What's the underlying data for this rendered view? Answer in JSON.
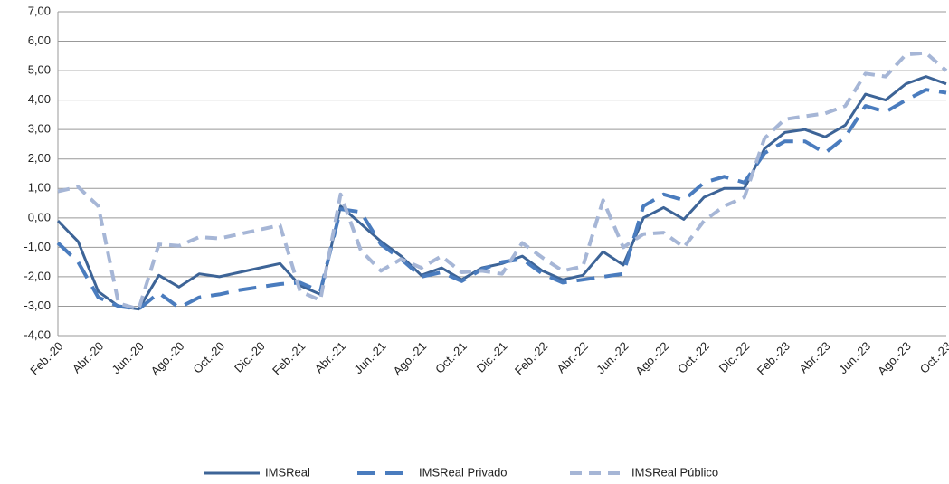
{
  "chart_data": {
    "type": "line",
    "categories": [
      "Feb.-20",
      null,
      "Abr.-20",
      null,
      "Jun.-20",
      null,
      "Ago.-20",
      null,
      "Oct.-20",
      null,
      "Dic.-20",
      null,
      "Feb.-21",
      null,
      "Abr.-21",
      null,
      "Jun.-21",
      null,
      "Ago.-21",
      null,
      "Oct.-21",
      null,
      "Dic.-21",
      null,
      "Feb.-22",
      null,
      "Abr.-22",
      null,
      "Jun.-22",
      null,
      "Ago.-22",
      null,
      "Oct.-22",
      null,
      "Dic.-22",
      null,
      "Feb.-23",
      null,
      "Abr.-23",
      null,
      "Jun.-23",
      null,
      "Ago.-23",
      null,
      "Oct.-23"
    ],
    "series": [
      {
        "name": "IMSReal",
        "color": "#3d6497",
        "dash": "solid",
        "values": [
          -0.1,
          -0.8,
          -2.5,
          -3.0,
          -3.1,
          -1.95,
          -2.35,
          -1.9,
          -2.0,
          -1.85,
          -1.7,
          -1.55,
          -2.3,
          -2.6,
          0.4,
          -0.2,
          -0.8,
          -1.3,
          -1.95,
          -1.7,
          -2.1,
          -1.7,
          -1.55,
          -1.3,
          -1.8,
          -2.1,
          -1.95,
          -1.15,
          -1.6,
          0.0,
          0.35,
          -0.05,
          0.7,
          1.0,
          1.0,
          2.35,
          2.9,
          3.0,
          2.75,
          3.15,
          4.2,
          4.0,
          4.55,
          4.8,
          4.55
        ]
      },
      {
        "name": "IMSReal Privado",
        "color": "#4a7cbe",
        "dash": "long",
        "values": [
          -0.85,
          -1.5,
          -2.7,
          -3.0,
          -3.1,
          -2.55,
          -3.05,
          -2.7,
          -2.6,
          -2.45,
          -2.35,
          -2.25,
          -2.2,
          -2.5,
          0.3,
          0.2,
          -0.9,
          -1.4,
          -2.0,
          -1.85,
          -2.15,
          -1.75,
          -1.5,
          -1.4,
          -1.9,
          -2.2,
          -2.1,
          -2.0,
          -1.9,
          0.4,
          0.8,
          0.6,
          1.2,
          1.4,
          1.2,
          2.2,
          2.6,
          2.6,
          2.2,
          2.75,
          3.8,
          3.6,
          4.0,
          4.35,
          4.25
        ]
      },
      {
        "name": "IMSReal Público",
        "color": "#a6b6d6",
        "dash": "short",
        "values": [
          0.9,
          1.05,
          0.4,
          -2.9,
          -3.1,
          -0.9,
          -0.95,
          -0.65,
          -0.7,
          -0.55,
          -0.4,
          -0.25,
          -2.5,
          -2.8,
          0.8,
          -1.1,
          -1.8,
          -1.4,
          -1.7,
          -1.3,
          -1.85,
          -1.8,
          -1.9,
          -0.85,
          -1.35,
          -1.8,
          -1.65,
          0.6,
          -1.0,
          -0.55,
          -0.5,
          -1.0,
          -0.1,
          0.4,
          0.7,
          2.7,
          3.35,
          3.45,
          3.55,
          3.8,
          4.9,
          4.8,
          5.55,
          5.6,
          5.0
        ]
      }
    ],
    "ylim": [
      -4,
      7
    ],
    "yticks": [
      {
        "value": -4,
        "label": "-4,00"
      },
      {
        "value": -3,
        "label": "-3,00"
      },
      {
        "value": -2,
        "label": "-2,00"
      },
      {
        "value": -1,
        "label": "-1,00"
      },
      {
        "value": 0,
        "label": "0,00"
      },
      {
        "value": 1,
        "label": "1,00"
      },
      {
        "value": 2,
        "label": "2,00"
      },
      {
        "value": 3,
        "label": "3,00"
      },
      {
        "value": 4,
        "label": "4,00"
      },
      {
        "value": 5,
        "label": "5,00"
      },
      {
        "value": 6,
        "label": "6,00"
      },
      {
        "value": 7,
        "label": "7,00"
      }
    ],
    "grid": true,
    "legend": "bottom"
  }
}
